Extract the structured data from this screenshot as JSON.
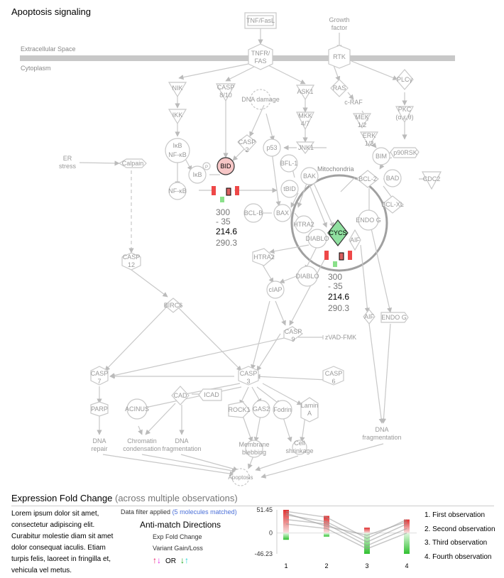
{
  "title": "Apoptosis signaling",
  "compartments": {
    "extracellular": "Extracellular Space",
    "cytoplasm": "Cytoplasm",
    "mitochondria": "Mitochondria"
  },
  "nodes": {
    "tnf": "TNF/FasL",
    "growth": [
      "Growth",
      "factor"
    ],
    "tnfr": [
      "TNFR/",
      "FAS"
    ],
    "rtk": "RTK",
    "nik": "NIK",
    "ikk": "IKK",
    "ikb_nfkb": [
      "IκB",
      "NF-κB"
    ],
    "p": "P",
    "ikb": "IκB",
    "nfkb": "NF-κB",
    "casp810": [
      "CASP",
      "8/10"
    ],
    "dna_damage": "DNA damage",
    "ask1": "ASK1",
    "mkk47": [
      "MKK",
      "4/7"
    ],
    "ras": "RAS",
    "craf": "c-RAF",
    "mek": [
      "MEK",
      "1/2"
    ],
    "erk": [
      "ERK",
      "1/2"
    ],
    "plc": "PLCγ",
    "pkc": [
      "PKC",
      "(α,ε,θ)"
    ],
    "bim": "BIM",
    "p90rsk": "p90RSK",
    "casp2": [
      "CASP",
      "2"
    ],
    "p53": "p53",
    "jnk1": "JNK1",
    "bid": "BID",
    "er_stress": [
      "ER",
      "stress"
    ],
    "calpain": "Calpain",
    "bfl1": "BFL-1",
    "bak": "BAK",
    "tbid": "tBID",
    "bcl2": "BCL-2",
    "bad": "BAD",
    "cdc2": "CDC2",
    "bclb": "BCL-B",
    "bax": "BAX",
    "bclxl": "BCL-XL",
    "endog_mito": "ENDO G",
    "htra2_mito": "HTRA2",
    "cycs": "CYCS",
    "diablo_mito": "DIABLO",
    "aif_mito": "AIF",
    "casp12": [
      "CASP",
      "12"
    ],
    "htra2": "HTRA2",
    "diablo": "DIABLO",
    "ciap": "cIAP",
    "birc6": "BIRC6",
    "casp9": [
      "CASP",
      "9"
    ],
    "zvad": "zVAD-FMK",
    "aif": "AIF",
    "endog": "ENDO G",
    "casp7": [
      "CASP",
      "7"
    ],
    "casp3": [
      "CASP",
      "3"
    ],
    "casp6": [
      "CASP",
      "6"
    ],
    "parp": "PARP",
    "cad": "CAD",
    "icad": "ICAD",
    "acinus": "ACINUS",
    "rock1": "ROCK1",
    "gas2": "GAS2",
    "fodrin": "Fodrin",
    "lamin": [
      "Lamin",
      "A"
    ],
    "dna_repair": [
      "DNA",
      "repair"
    ],
    "chrom_cond": [
      "Chromatin",
      "condensation"
    ],
    "dna_frag1": [
      "DNA",
      "fragmentation"
    ],
    "membrane_blebbing": [
      "Membrane",
      "blebbing"
    ],
    "cell_shrinkage": [
      "Cell",
      "shrinkage"
    ],
    "dna_frag2": [
      "DNA",
      "fragmentation"
    ],
    "apoptosis": "Apoptosis"
  },
  "bid_values": [
    "300",
    "- 35",
    "214.6",
    "290.3"
  ],
  "cycs_values": [
    "300",
    "- 35",
    "214.6",
    "290.3"
  ],
  "expression": {
    "title": "Expression Fold Change",
    "subtitle": "(across multiple observations)",
    "description": "Lorem ipsum dolor sit amet, consectetur adipiscing elit. Curabitur molestie diam sit amet dolor consequat iaculis. Etiam turpis felis, laoreet in fringilla et, vehicula vel metus.",
    "filter_text": "Data filter applied",
    "filter_matched": "(5 molecules matched)",
    "anti_match_title": "Anti-match Directions",
    "exp_fold_change": "Exp Fold Change",
    "variant_gain_loss": "Variant Gain/Loss",
    "or_label": "OR",
    "arrows": [
      "↑",
      "↓",
      "↓",
      "↑"
    ],
    "legend": [
      "1. First observation",
      "2. Second observation",
      "3. Third observation",
      "4. Fourth observation"
    ]
  },
  "chart_data": {
    "type": "line",
    "categories": [
      "1",
      "2",
      "3",
      "4"
    ],
    "ylim": [
      -46.23,
      51.45
    ],
    "y_ticks": [
      "51.45",
      "0",
      "-46.23"
    ],
    "bars": [
      {
        "pos_max": 51.45,
        "neg_min": -15
      },
      {
        "pos_max": 38,
        "neg_min": -8
      },
      {
        "pos_max": 12,
        "neg_min": -46.23
      },
      {
        "pos_max": 30,
        "neg_min": -46.23
      }
    ],
    "series": [
      {
        "values": [
          48,
          35,
          -12,
          30
        ]
      },
      {
        "values": [
          40,
          25,
          -20,
          20
        ]
      },
      {
        "values": [
          30,
          20,
          -28,
          10
        ]
      },
      {
        "values": [
          20,
          10,
          -35,
          0
        ]
      },
      {
        "values": [
          44,
          15,
          -5,
          25
        ]
      }
    ],
    "colors": {
      "positive": "#e03030",
      "negative": "#30c030",
      "line": "#999999"
    }
  }
}
